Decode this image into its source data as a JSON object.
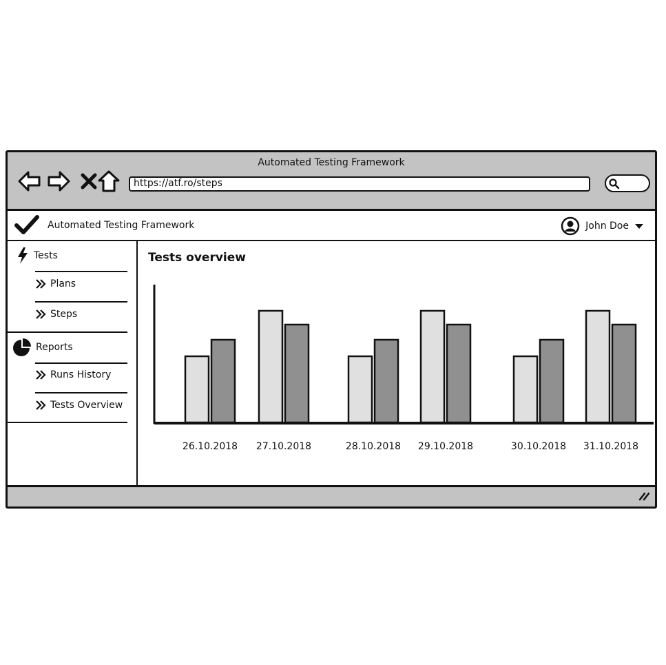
{
  "window": {
    "title": "Automated Testing Framework",
    "url": "https://atf.ro/steps"
  },
  "appbar": {
    "title": "Automated Testing Framework",
    "user": "John Doe"
  },
  "sidebar": {
    "groups": [
      {
        "label": "Tests",
        "icon": "lightning-icon",
        "items": [
          "Plans",
          "Steps"
        ]
      },
      {
        "label": "Reports",
        "icon": "pie-chart-icon",
        "items": [
          "Runs History",
          "Tests Overview"
        ]
      }
    ]
  },
  "main": {
    "title": "Tests overview"
  },
  "colors": {
    "chrome": "#c3c3c3",
    "light_bar": "#e0e0e0",
    "dark_bar": "#909090"
  },
  "chart_data": {
    "type": "bar",
    "categories": [
      "26.10.2018",
      "27.10.2018",
      "28.10.2018",
      "29.10.2018",
      "30.10.2018",
      "31.10.2018"
    ],
    "series": [
      {
        "values": [
          48,
          81,
          48,
          81,
          48,
          81
        ]
      },
      {
        "values": [
          60,
          71,
          60,
          71,
          60,
          71
        ]
      }
    ],
    "ylim": [
      0,
      100
    ],
    "grid": false
  }
}
